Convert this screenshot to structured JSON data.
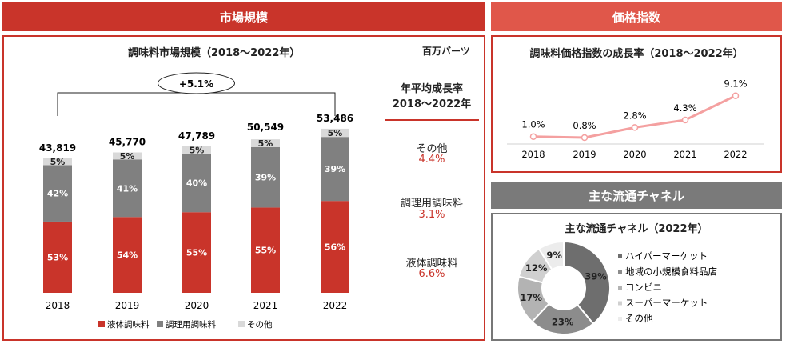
{
  "sections": {
    "market": {
      "header": "市場規模"
    },
    "price": {
      "header": "価格指数"
    },
    "channel": {
      "header": "主な流通チャネル"
    }
  },
  "colors": {
    "header_dark": "#c9342a",
    "header_light": "#e0574a",
    "header_gray": "#7a7a7a",
    "liquid": "#c9342a",
    "commercial": "#808080",
    "other": "#d9d9d9",
    "price_line": "#f4a0a0"
  },
  "market_chart": {
    "unit_label": "百万バーツ",
    "cagr": {
      "heading": "年平均成長率\n2018～2022年",
      "items": [
        {
          "label": "その他",
          "value": "4.4%"
        },
        {
          "label": "調理用調味料",
          "value": "3.1%"
        },
        {
          "label": "液体調味料",
          "value": "6.6%"
        }
      ]
    },
    "growth_bracket_label": "+5.1%"
  },
  "chart_data": [
    {
      "type": "bar",
      "title": "調味料市場規模（2018～2022年）",
      "categories": [
        "2018",
        "2019",
        "2020",
        "2021",
        "2022"
      ],
      "totals": [
        "43,819",
        "45,770",
        "47,789",
        "50,549",
        "53,486"
      ],
      "total_values": [
        43819,
        45770,
        47789,
        50549,
        53486
      ],
      "series": [
        {
          "name": "液体調味料",
          "values": [
            53,
            54,
            55,
            55,
            56
          ],
          "labels": [
            "53%",
            "54%",
            "55%",
            "55%",
            "56%"
          ]
        },
        {
          "name": "調理用調味料",
          "values": [
            42,
            41,
            40,
            39,
            39
          ],
          "labels": [
            "42%",
            "41%",
            "40%",
            "39%",
            "39%"
          ]
        },
        {
          "name": "その他",
          "values": [
            5,
            5,
            5,
            5,
            5
          ],
          "labels": [
            "5%",
            "5%",
            "5%",
            "5%",
            "5%"
          ]
        }
      ]
    },
    {
      "type": "line",
      "title": "調味料価格指数の成長率（2018～2022年）",
      "x": [
        "2018",
        "2019",
        "2020",
        "2021",
        "2022"
      ],
      "values": [
        1.0,
        0.8,
        2.8,
        4.3,
        9.1
      ],
      "labels": [
        "1.0%",
        "0.8%",
        "2.8%",
        "4.3%",
        "9.1%"
      ]
    },
    {
      "type": "pie",
      "title": "主な流通チャネル（2022年）",
      "slices": [
        {
          "name": "ハイパーマーケット",
          "value": 39,
          "label": "39%",
          "color": "#6e6e6e"
        },
        {
          "name": "地域の小規模食料品店",
          "value": 23,
          "label": "23%",
          "color": "#8c8c8c"
        },
        {
          "name": "コンビニ",
          "value": 17,
          "label": "17%",
          "color": "#b3b3b3"
        },
        {
          "name": "スーパーマーケット",
          "value": 12,
          "label": "12%",
          "color": "#d0d0d0"
        },
        {
          "name": "その他",
          "value": 9,
          "label": "9%",
          "color": "#ececec"
        }
      ]
    }
  ]
}
